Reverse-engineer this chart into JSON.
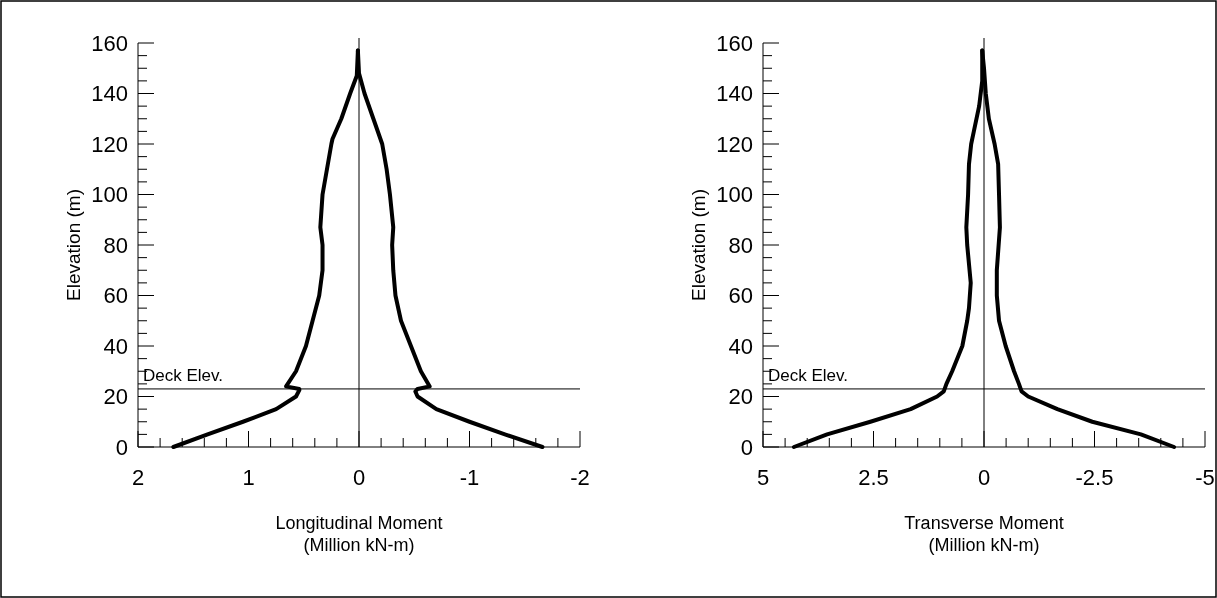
{
  "chart_data": [
    {
      "type": "line",
      "xlabel": "Longitudinal Moment\n(Million kN-m)",
      "ylabel": "Elevation (m)",
      "xlim": [
        2,
        -2
      ],
      "ylim": [
        0,
        160
      ],
      "xticks": [
        2,
        {
          "value": 1.8,
          "label": null
        },
        {
          "value": 1.6,
          "label": null
        },
        {
          "value": 1.4,
          "label": null
        },
        {
          "value": 1.2,
          "label": null
        },
        1,
        {
          "value": 0.8,
          "label": null
        },
        {
          "value": 0.6,
          "label": null
        },
        {
          "value": 0.4,
          "label": null
        },
        {
          "value": 0.2,
          "label": null
        },
        0,
        {
          "value": -0.2,
          "label": null
        },
        {
          "value": -0.4,
          "label": null
        },
        {
          "value": -0.6,
          "label": null
        },
        {
          "value": -0.8,
          "label": null
        },
        -1,
        {
          "value": -1.2,
          "label": null
        },
        {
          "value": -1.4,
          "label": null
        },
        {
          "value": -1.6,
          "label": null
        },
        {
          "value": -1.8,
          "label": null
        },
        -2
      ],
      "yticks": [
        0,
        {
          "value": 5,
          "label": null
        },
        {
          "value": 10,
          "label": null
        },
        {
          "value": 15,
          "label": null
        },
        20,
        {
          "value": 25,
          "label": null
        },
        {
          "value": 30,
          "label": null
        },
        {
          "value": 35,
          "label": null
        },
        40,
        {
          "value": 45,
          "label": null
        },
        {
          "value": 50,
          "label": null
        },
        {
          "value": 55,
          "label": null
        },
        60,
        {
          "value": 65,
          "label": null
        },
        {
          "value": 70,
          "label": null
        },
        {
          "value": 75,
          "label": null
        },
        80,
        {
          "value": 85,
          "label": null
        },
        {
          "value": 90,
          "label": null
        },
        {
          "value": 95,
          "label": null
        },
        100,
        {
          "value": 105,
          "label": null
        },
        {
          "value": 110,
          "label": null
        },
        {
          "value": 115,
          "label": null
        },
        120,
        {
          "value": 125,
          "label": null
        },
        {
          "value": 130,
          "label": null
        },
        {
          "value": 135,
          "label": null
        },
        140,
        {
          "value": 145,
          "label": null
        },
        {
          "value": 150,
          "label": null
        },
        {
          "value": 155,
          "label": null
        },
        160
      ],
      "ref_lines": [
        {
          "axis": "y",
          "value": 23,
          "label": "Deck Elev."
        },
        {
          "axis": "x",
          "value": 0,
          "label": null
        }
      ],
      "series": [
        {
          "color": "#000000",
          "x": [
            1.68,
            1.37,
            1.05,
            0.75,
            0.57,
            0.54,
            0.54,
            0.66,
            0.57,
            0.48,
            0.42,
            0.36,
            0.33,
            0.33,
            0.35,
            0.33,
            0.29,
            0.25,
            0.24,
            0.16,
            0.08,
            0.02,
            0.01
          ],
          "values": [
            0,
            5,
            10,
            15,
            20,
            22.5,
            23,
            24,
            30,
            40,
            50,
            60,
            70,
            80,
            87,
            100,
            110,
            120,
            122,
            130,
            140,
            147,
            157
          ]
        },
        {
          "color": "#000000",
          "x": [
            -1.66,
            -1.32,
            -1.0,
            -0.7,
            -0.53,
            -0.51,
            -0.53,
            -0.64,
            -0.56,
            -0.47,
            -0.38,
            -0.33,
            -0.31,
            -0.3,
            -0.31,
            -0.28,
            -0.25,
            -0.21,
            -0.13,
            -0.05,
            0,
            0.01
          ],
          "values": [
            0,
            5,
            10,
            15,
            20,
            22,
            23,
            24,
            30,
            40,
            50,
            60,
            70,
            80,
            87,
            100,
            110,
            120,
            130,
            140,
            148,
            157
          ]
        }
      ]
    },
    {
      "type": "line",
      "xlabel": "Transverse Moment\n(Million kN-m)",
      "ylabel": "Elevation (m)",
      "xlim": [
        5,
        -5
      ],
      "ylim": [
        0,
        160
      ],
      "xticks": [
        5,
        {
          "value": 4.5,
          "label": null
        },
        {
          "value": 4,
          "label": null
        },
        {
          "value": 3.5,
          "label": null
        },
        {
          "value": 3,
          "label": null
        },
        2.5,
        {
          "value": 2,
          "label": null
        },
        {
          "value": 1.5,
          "label": null
        },
        {
          "value": 1,
          "label": null
        },
        {
          "value": 0.5,
          "label": null
        },
        0,
        {
          "value": -0.5,
          "label": null
        },
        {
          "value": -1,
          "label": null
        },
        {
          "value": -1.5,
          "label": null
        },
        {
          "value": -2,
          "label": null
        },
        -2.5,
        {
          "value": -3,
          "label": null
        },
        {
          "value": -3.5,
          "label": null
        },
        {
          "value": -4,
          "label": null
        },
        {
          "value": -4.5,
          "label": null
        },
        -5
      ],
      "yticks": [
        0,
        {
          "value": 5,
          "label": null
        },
        {
          "value": 10,
          "label": null
        },
        {
          "value": 15,
          "label": null
        },
        20,
        {
          "value": 25,
          "label": null
        },
        {
          "value": 30,
          "label": null
        },
        {
          "value": 35,
          "label": null
        },
        40,
        {
          "value": 45,
          "label": null
        },
        {
          "value": 50,
          "label": null
        },
        {
          "value": 55,
          "label": null
        },
        60,
        {
          "value": 65,
          "label": null
        },
        {
          "value": 70,
          "label": null
        },
        {
          "value": 75,
          "label": null
        },
        80,
        {
          "value": 85,
          "label": null
        },
        {
          "value": 90,
          "label": null
        },
        {
          "value": 95,
          "label": null
        },
        100,
        {
          "value": 105,
          "label": null
        },
        {
          "value": 110,
          "label": null
        },
        {
          "value": 115,
          "label": null
        },
        120,
        {
          "value": 125,
          "label": null
        },
        {
          "value": 130,
          "label": null
        },
        {
          "value": 135,
          "label": null
        },
        140,
        {
          "value": 145,
          "label": null
        },
        {
          "value": 150,
          "label": null
        },
        {
          "value": 155,
          "label": null
        },
        160
      ],
      "ref_lines": [
        {
          "axis": "y",
          "value": 23,
          "label": "Deck Elev."
        },
        {
          "axis": "x",
          "value": 0,
          "label": null
        }
      ],
      "series": [
        {
          "color": "#000000",
          "x": [
            4.3,
            3.55,
            2.57,
            1.66,
            1.06,
            0.91,
            0.85,
            0.72,
            0.49,
            0.38,
            0.34,
            0.3,
            0.38,
            0.4,
            0.36,
            0.34,
            0.29,
            0.23,
            0.11,
            0.04,
            0.04
          ],
          "values": [
            0,
            5,
            10,
            15,
            20,
            22,
            25,
            30,
            40,
            50,
            55,
            65,
            80,
            87,
            100,
            112,
            120,
            125,
            135,
            145,
            157
          ]
        },
        {
          "color": "#000000",
          "x": [
            -4.3,
            -3.55,
            -2.45,
            -1.66,
            -1.0,
            -0.85,
            -0.79,
            -0.68,
            -0.49,
            -0.34,
            -0.29,
            -0.29,
            -0.36,
            -0.34,
            -0.32,
            -0.24,
            -0.11,
            -0.04,
            0,
            0.04
          ],
          "values": [
            0,
            5,
            10,
            15,
            20,
            22,
            25,
            30,
            40,
            50,
            60,
            70,
            87,
            100,
            112,
            120,
            130,
            140,
            150,
            157
          ]
        }
      ]
    }
  ]
}
